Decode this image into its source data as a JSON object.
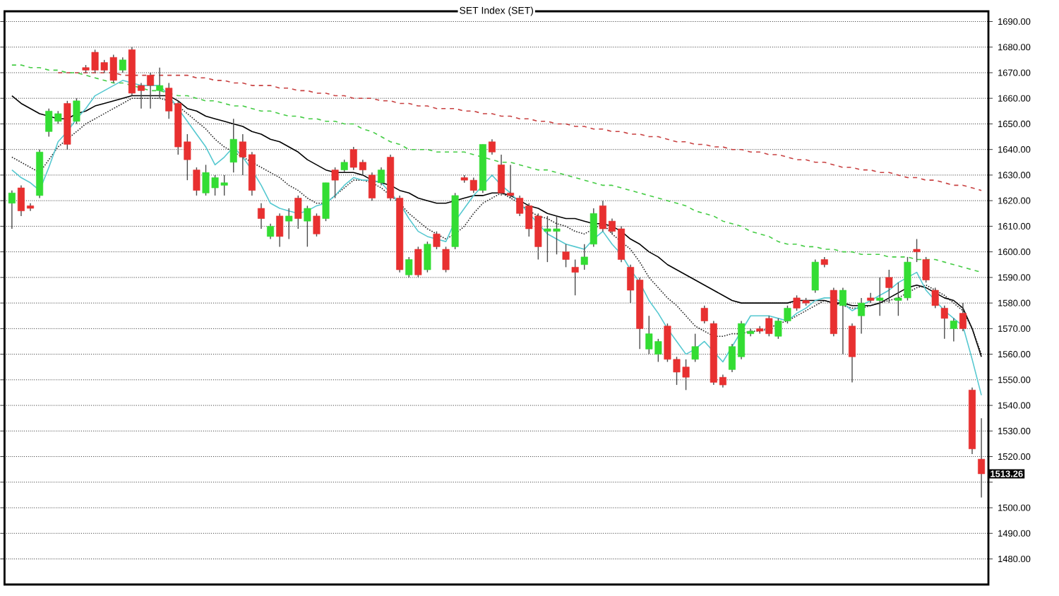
{
  "chart_data": {
    "type": "candlestick",
    "title": "SET Index (SET)",
    "categories": [
      null,
      null,
      null,
      null,
      null,
      null,
      null,
      null,
      null,
      null,
      null,
      null,
      null,
      null,
      null,
      null,
      null,
      null,
      null,
      null,
      null,
      null,
      null,
      null,
      null,
      null,
      null,
      null,
      null,
      null,
      null,
      null,
      null,
      null,
      null,
      null,
      null,
      null,
      null,
      null,
      null,
      null,
      null,
      null,
      null,
      null,
      null,
      null,
      null,
      null,
      null,
      null,
      null,
      null,
      null,
      null,
      null,
      null,
      null,
      null,
      null,
      null,
      null,
      null,
      null,
      null,
      null,
      null,
      null,
      null,
      null,
      null,
      null,
      null,
      null,
      null,
      null,
      null,
      null,
      null,
      null,
      null,
      null,
      null,
      null,
      null,
      null,
      null,
      null,
      null,
      null,
      null,
      null,
      null,
      null,
      null,
      null,
      null,
      null,
      null,
      null,
      null,
      null,
      null,
      null,
      null
    ],
    "ohlc": [
      [
        1619,
        1624,
        1609,
        1623
      ],
      [
        1625,
        1626,
        1614,
        1616
      ],
      [
        1618,
        1619,
        1616,
        1617
      ],
      [
        1622,
        1640,
        1621,
        1639
      ],
      [
        1647,
        1656,
        1645,
        1655
      ],
      [
        1651,
        1655,
        1650,
        1654
      ],
      [
        1658,
        1659,
        1640,
        1642
      ],
      [
        1651,
        1660,
        1650,
        1659
      ],
      [
        1672,
        1673,
        1670,
        1671
      ],
      [
        1678,
        1679,
        1670,
        1671
      ],
      [
        1674,
        1675,
        1670,
        1671
      ],
      [
        1676,
        1677,
        1666,
        1667
      ],
      [
        1671,
        1676,
        1670,
        1675
      ],
      [
        1679,
        1680,
        1661,
        1662
      ],
      [
        1665,
        1666,
        1656,
        1663
      ],
      [
        1669,
        1670,
        1656,
        1665
      ],
      [
        1663,
        1672,
        1660,
        1665
      ],
      [
        1664,
        1666,
        1652,
        1655
      ],
      [
        1658,
        1659,
        1638,
        1641
      ],
      [
        1643,
        1646,
        1628,
        1636
      ],
      [
        1632,
        1633,
        1622,
        1624
      ],
      [
        1623,
        1634,
        1622,
        1631
      ],
      [
        1625,
        1630,
        1622,
        1629
      ],
      [
        1626,
        1630,
        1622,
        1627
      ],
      [
        1635,
        1652,
        1631,
        1644
      ],
      [
        1643,
        1646,
        1630,
        1637
      ],
      [
        1638,
        1639,
        1622,
        1624
      ],
      [
        1617,
        1619,
        1609,
        1613
      ],
      [
        1606,
        1611,
        1605,
        1610
      ],
      [
        1614,
        1615,
        1602,
        1606
      ],
      [
        1612,
        1617,
        1605,
        1614
      ],
      [
        1621,
        1622,
        1609,
        1613
      ],
      [
        1612,
        1618,
        1602,
        1617
      ],
      [
        1614,
        1615,
        1606,
        1607
      ],
      [
        1613,
        1627,
        1612,
        1627
      ],
      [
        1632,
        1633,
        1621,
        1628
      ],
      [
        1632,
        1636,
        1631,
        1635
      ],
      [
        1640,
        1641,
        1632,
        1633
      ],
      [
        1635,
        1636,
        1630,
        1632
      ],
      [
        1630,
        1631,
        1620,
        1621
      ],
      [
        1627,
        1633,
        1626,
        1632
      ],
      [
        1637,
        1638,
        1620,
        1621
      ],
      [
        1621,
        1622,
        1592,
        1593
      ],
      [
        1591,
        1598,
        1590,
        1597
      ],
      [
        1601,
        1602,
        1590,
        1591
      ],
      [
        1593,
        1604,
        1592,
        1603
      ],
      [
        1607,
        1608,
        1601,
        1602
      ],
      [
        1601,
        1602,
        1592,
        1593
      ],
      [
        1602,
        1623,
        1601,
        1622
      ],
      [
        1629,
        1630,
        1627,
        1628
      ],
      [
        1628,
        1629,
        1623,
        1624
      ],
      [
        1624,
        1642,
        1623,
        1642
      ],
      [
        1643,
        1644,
        1638,
        1639
      ],
      [
        1634,
        1638,
        1622,
        1623
      ],
      [
        1623,
        1634,
        1621,
        1622
      ],
      [
        1621,
        1622,
        1614,
        1615
      ],
      [
        1618,
        1619,
        1606,
        1609
      ],
      [
        1614,
        1615,
        1597,
        1602
      ],
      [
        1608,
        1614,
        1596,
        1609
      ],
      [
        1608,
        1614,
        1599,
        1609
      ],
      [
        1600,
        1603,
        1594,
        1597
      ],
      [
        1594,
        1597,
        1583,
        1592
      ],
      [
        1595,
        1603,
        1593,
        1598
      ],
      [
        1603,
        1617,
        1602,
        1615
      ],
      [
        1618,
        1620,
        1608,
        1609
      ],
      [
        1612,
        1613,
        1607,
        1608
      ],
      [
        1609,
        1610,
        1596,
        1597
      ],
      [
        1594,
        1595,
        1580,
        1585
      ],
      [
        1589,
        1590,
        1562,
        1570
      ],
      [
        1562,
        1575,
        1560,
        1568
      ],
      [
        1560,
        1566,
        1557,
        1565
      ],
      [
        1571,
        1572,
        1557,
        1558
      ],
      [
        1558,
        1559,
        1548,
        1553
      ],
      [
        1555,
        1558,
        1546,
        1551
      ],
      [
        1558,
        1568,
        1557,
        1563
      ],
      [
        1578,
        1579,
        1572,
        1573
      ],
      [
        1572,
        1573,
        1548,
        1549
      ],
      [
        1551,
        1552,
        1547,
        1548
      ],
      [
        1554,
        1564,
        1553,
        1563
      ],
      [
        1559,
        1573,
        1558,
        1572
      ],
      [
        1568,
        1570,
        1567,
        1569
      ],
      [
        1570,
        1571,
        1568,
        1569
      ],
      [
        1574,
        1575,
        1567,
        1568
      ],
      [
        1567,
        1574,
        1566,
        1573
      ],
      [
        1573,
        1579,
        1572,
        1578
      ],
      [
        1582,
        1583,
        1577,
        1578
      ],
      [
        1581,
        1582,
        1579,
        1580
      ],
      [
        1585,
        1597,
        1584,
        1596
      ],
      [
        1597,
        1598,
        1594,
        1595
      ],
      [
        1585,
        1586,
        1567,
        1568
      ],
      [
        1579,
        1586,
        1560,
        1585
      ],
      [
        1571,
        1572,
        1549,
        1559
      ],
      [
        1575,
        1582,
        1568,
        1580
      ],
      [
        1582,
        1584,
        1580,
        1581
      ],
      [
        1581,
        1590,
        1575,
        1582
      ],
      [
        1590,
        1593,
        1580,
        1586
      ],
      [
        1581,
        1588,
        1575,
        1582
      ],
      [
        1582,
        1598,
        1581,
        1596
      ],
      [
        1601,
        1605,
        1596,
        1600
      ],
      [
        1597,
        1598,
        1588,
        1589
      ],
      [
        1585,
        1586,
        1578,
        1579
      ],
      [
        1578,
        1579,
        1566,
        1574
      ],
      [
        1570,
        1574,
        1565,
        1573
      ],
      [
        1576,
        1580,
        1569,
        1570
      ],
      [
        1546,
        1547,
        1521,
        1523
      ],
      [
        1519,
        1535,
        1504,
        1513.26
      ]
    ],
    "colors": [
      "#33dd33",
      "#e83030",
      "#e83030",
      "#33dd33",
      "#33dd33",
      "#33dd33",
      "#e83030",
      "#33dd33",
      "#e83030",
      "#e83030",
      "#e83030",
      "#e83030",
      "#33dd33",
      "#e83030",
      "#e83030",
      "#e83030",
      "#33dd33",
      "#e83030",
      "#e83030",
      "#e83030",
      "#e83030",
      "#33dd33",
      "#33dd33",
      "#33dd33",
      "#33dd33",
      "#e83030",
      "#e83030",
      "#e83030",
      "#33dd33",
      "#e83030",
      "#33dd33",
      "#e83030",
      "#33dd33",
      "#e83030",
      "#33dd33",
      "#e83030",
      "#33dd33",
      "#e83030",
      "#e83030",
      "#e83030",
      "#33dd33",
      "#e83030",
      "#e83030",
      "#33dd33",
      "#e83030",
      "#33dd33",
      "#e83030",
      "#e83030",
      "#33dd33",
      "#e83030",
      "#e83030",
      "#33dd33",
      "#e83030",
      "#e83030",
      "#e83030",
      "#e83030",
      "#e83030",
      "#e83030",
      "#33dd33",
      "#33dd33",
      "#e83030",
      "#e83030",
      "#33dd33",
      "#33dd33",
      "#e83030",
      "#e83030",
      "#e83030",
      "#e83030",
      "#e83030",
      "#33dd33",
      "#33dd33",
      "#e83030",
      "#e83030",
      "#e83030",
      "#33dd33",
      "#e83030",
      "#e83030",
      "#e83030",
      "#33dd33",
      "#33dd33",
      "#33dd33",
      "#e83030",
      "#e83030",
      "#33dd33",
      "#33dd33",
      "#e83030",
      "#e83030",
      "#33dd33",
      "#e83030",
      "#e83030",
      "#33dd33",
      "#e83030",
      "#33dd33",
      "#e83030",
      "#33dd33",
      "#e83030",
      "#33dd33",
      "#33dd33",
      "#e83030",
      "#e83030",
      "#e83030",
      "#e83030",
      "#33dd33",
      "#e83030",
      "#e83030",
      "#e83030"
    ],
    "series": [
      {
        "type": "line",
        "color": "#c84040",
        "line_style": "dashed",
        "values": [
          null,
          null,
          null,
          null,
          null,
          1670,
          1670,
          1670,
          1670,
          1670,
          1670,
          1670,
          1669,
          1669,
          1669,
          1669,
          1669,
          1669,
          1669,
          1669,
          1668,
          1668,
          1667,
          1667,
          1666,
          1666,
          1665,
          1665,
          1665,
          1664,
          1664,
          1663,
          1663,
          1662,
          1662,
          1661,
          1661,
          1660,
          1660,
          1660,
          1659,
          1659,
          1658,
          1658,
          1657,
          1657,
          1656,
          1656,
          1656,
          1655,
          1655,
          1654,
          1654,
          1653,
          1653,
          1652,
          1652,
          1651,
          1651,
          1650,
          1650,
          1649,
          1649,
          1648,
          1648,
          1647,
          1647,
          1646,
          1646,
          1645,
          1645,
          1644,
          1643,
          1643,
          1642,
          1642,
          1641,
          1641,
          1640,
          1640,
          1639,
          1639,
          1638,
          1638,
          1637,
          1636,
          1636,
          1635,
          1635,
          1634,
          1633,
          1633,
          1632,
          1632,
          1631,
          1631,
          1630,
          1629,
          1629,
          1628,
          1628,
          1627,
          1626,
          1626,
          1625,
          1624
        ]
      },
      {
        "type": "line",
        "color": "#44cc44",
        "line_style": "dashed",
        "values": [
          1673,
          1673,
          1672,
          1672,
          1671,
          1671,
          1670,
          1670,
          1669,
          1668,
          1667,
          1666,
          1666,
          1665,
          1664,
          1663,
          1663,
          1662,
          1661,
          1661,
          1660,
          1659,
          1659,
          1658,
          1657,
          1657,
          1656,
          1655,
          1655,
          1654,
          1653,
          1653,
          1652,
          1652,
          1651,
          1651,
          1650,
          1650,
          1648,
          1647,
          1645,
          1643,
          1642,
          1640,
          1640,
          1640,
          1639,
          1639,
          1639,
          1639,
          1638,
          1637,
          1636,
          1635,
          1635,
          1634,
          1633,
          1632,
          1632,
          1631,
          1630,
          1629,
          1628,
          1627,
          1626,
          1626,
          1625,
          1624,
          1623,
          1622,
          1621,
          1620,
          1619,
          1618,
          1616,
          1615,
          1614,
          1612,
          1611,
          1610,
          1608,
          1607,
          1606,
          1604,
          1603,
          1603,
          1602,
          1602,
          1601,
          1601,
          1600,
          1600,
          1599,
          1599,
          1599,
          1598,
          1598,
          1598,
          1597,
          1597,
          1597,
          1596,
          1595,
          1594,
          1593,
          1592
        ]
      },
      {
        "type": "line",
        "color": "#000000",
        "line_style": "solid",
        "values": [
          1661,
          1658,
          1656,
          1654,
          1653,
          1652,
          1652,
          1654,
          1655,
          1657,
          1658,
          1659,
          1660,
          1661,
          1661,
          1661,
          1661,
          1661,
          1659,
          1656,
          1655,
          1653,
          1652,
          1651,
          1650,
          1649,
          1647,
          1646,
          1644,
          1643,
          1641,
          1639,
          1636,
          1634,
          1632,
          1631,
          1631,
          1631,
          1630,
          1628,
          1627,
          1626,
          1624,
          1623,
          1621,
          1620,
          1619,
          1619,
          1620,
          1621,
          1622,
          1622,
          1623,
          1623,
          1622,
          1620,
          1618,
          1617,
          1615,
          1614,
          1613,
          1613,
          1612,
          1611,
          1611,
          1610,
          1608,
          1605,
          1603,
          1600,
          1598,
          1595,
          1593,
          1591,
          1589,
          1587,
          1585,
          1583,
          1581,
          1580,
          1580,
          1580,
          1580,
          1580,
          1580,
          1581,
          1581,
          1581,
          1581,
          1580,
          1580,
          1579,
          1579,
          1579,
          1580,
          1582,
          1584,
          1586,
          1587,
          1586,
          1584,
          1582,
          1581,
          1578,
          1570,
          1559
        ]
      },
      {
        "type": "line",
        "color": "#222222",
        "line_style": "dotted",
        "values": [
          1637,
          1635,
          1633,
          1631,
          1636,
          1641,
          1644,
          1647,
          1650,
          1652,
          1654,
          1656,
          1658,
          1660,
          1660,
          1660,
          1660,
          1659,
          1657,
          1654,
          1651,
          1648,
          1644,
          1641,
          1639,
          1637,
          1635,
          1633,
          1631,
          1629,
          1626,
          1624,
          1621,
          1619,
          1619,
          1622,
          1625,
          1628,
          1628,
          1627,
          1625,
          1622,
          1619,
          1615,
          1612,
          1609,
          1607,
          1605,
          1607,
          1610,
          1615,
          1619,
          1621,
          1623,
          1621,
          1619,
          1616,
          1614,
          1613,
          1611,
          1610,
          1608,
          1607,
          1609,
          1611,
          1607,
          1604,
          1601,
          1596,
          1590,
          1586,
          1582,
          1579,
          1575,
          1571,
          1569,
          1567,
          1567,
          1568,
          1568,
          1569,
          1569,
          1570,
          1572,
          1573,
          1575,
          1577,
          1579,
          1581,
          1580,
          1579,
          1578,
          1578,
          1579,
          1580,
          1581,
          1582,
          1584,
          1586,
          1587,
          1585,
          1583,
          1580,
          1577,
          1570,
          1560
        ]
      },
      {
        "type": "line",
        "color": "#55c8d0",
        "line_style": "solid",
        "values": [
          1632,
          1629,
          1627,
          1624,
          1633,
          1643,
          1647,
          1652,
          1656,
          1661,
          1663,
          1665,
          1667,
          1666,
          1665,
          1665,
          1665,
          1661,
          1656,
          1651,
          1646,
          1641,
          1634,
          1637,
          1641,
          1637,
          1632,
          1626,
          1619,
          1617,
          1616,
          1615,
          1616,
          1618,
          1619,
          1622,
          1626,
          1629,
          1628,
          1628,
          1627,
          1623,
          1619,
          1613,
          1608,
          1606,
          1605,
          1604,
          1612,
          1617,
          1622,
          1626,
          1630,
          1626,
          1623,
          1619,
          1615,
          1611,
          1607,
          1605,
          1603,
          1602,
          1601,
          1605,
          1608,
          1603,
          1599,
          1593,
          1588,
          1581,
          1576,
          1570,
          1565,
          1560,
          1562,
          1565,
          1561,
          1557,
          1563,
          1569,
          1575,
          1575,
          1575,
          1574,
          1573,
          1576,
          1578,
          1581,
          1582,
          1582,
          1580,
          1577,
          1579,
          1581,
          1583,
          1585,
          1588,
          1590,
          1592,
          1585,
          1581,
          1577,
          1574,
          1571,
          1558,
          1544
        ]
      }
    ],
    "ylim": [
      1470,
      1694
    ],
    "yticks": [
      {
        "value": 1480,
        "label": "1480.00"
      },
      {
        "value": 1490,
        "label": "1490.00"
      },
      {
        "value": 1500,
        "label": "1500.00"
      },
      {
        "value": 1510,
        "label": null
      },
      {
        "value": 1520,
        "label": "1520.00"
      },
      {
        "value": 1530,
        "label": "1530.00"
      },
      {
        "value": 1540,
        "label": "1540.00"
      },
      {
        "value": 1550,
        "label": "1550.00"
      },
      {
        "value": 1560,
        "label": "1560.00"
      },
      {
        "value": 1570,
        "label": "1570.00"
      },
      {
        "value": 1580,
        "label": "1580.00"
      },
      {
        "value": 1590,
        "label": "1590.00"
      },
      {
        "value": 1600,
        "label": "1600.00"
      },
      {
        "value": 1610,
        "label": "1610.00"
      },
      {
        "value": 1620,
        "label": "1620.00"
      },
      {
        "value": 1630,
        "label": "1630.00"
      },
      {
        "value": 1640,
        "label": "1640.00"
      },
      {
        "value": 1650,
        "label": "1650.00"
      },
      {
        "value": 1660,
        "label": "1660.00"
      },
      {
        "value": 1670,
        "label": "1670.00"
      },
      {
        "value": 1680,
        "label": "1680.00"
      },
      {
        "value": 1690,
        "label": "1690.00"
      }
    ],
    "grid": "y",
    "annotations": [
      "1513.26"
    ]
  }
}
